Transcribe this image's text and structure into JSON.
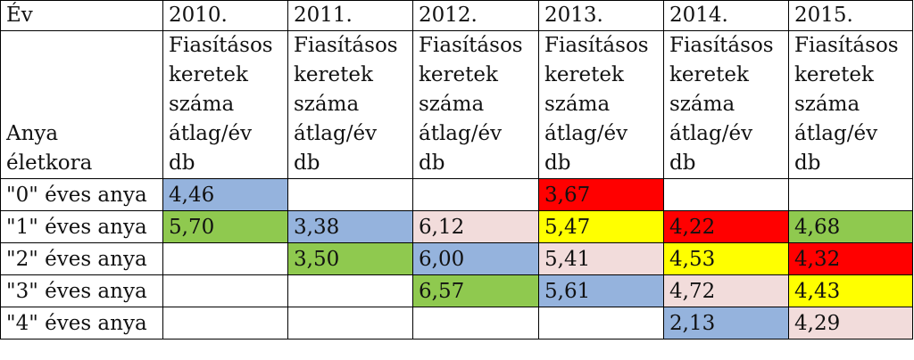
{
  "table": {
    "corner_label": "Év",
    "row_header_label_line1": "Anya",
    "row_header_label_line2": "életkora",
    "years": [
      "2010.",
      "2011.",
      "2012.",
      "2013.",
      "2014.",
      "2015."
    ],
    "column_header_lines": [
      "Fiasításos",
      "keretek",
      "száma",
      "átlag/év",
      "db"
    ],
    "rows": [
      {
        "label": "\"0\" éves anya",
        "cells": [
          {
            "value": "4,46",
            "color": "blue"
          },
          {
            "value": "",
            "color": "none"
          },
          {
            "value": "",
            "color": "none"
          },
          {
            "value": "3,67",
            "color": "red"
          },
          {
            "value": "",
            "color": "none"
          },
          {
            "value": "",
            "color": "none"
          }
        ]
      },
      {
        "label": "\"1\" éves anya",
        "cells": [
          {
            "value": "5,70",
            "color": "green"
          },
          {
            "value": "3,38",
            "color": "blue"
          },
          {
            "value": "6,12",
            "color": "pink"
          },
          {
            "value": "5,47",
            "color": "yellow"
          },
          {
            "value": "4,22",
            "color": "red"
          },
          {
            "value": "4,68",
            "color": "green"
          }
        ]
      },
      {
        "label": "\"2\" éves anya",
        "cells": [
          {
            "value": "",
            "color": "none"
          },
          {
            "value": "3,50",
            "color": "green"
          },
          {
            "value": "6,00",
            "color": "blue"
          },
          {
            "value": "5,41",
            "color": "pink"
          },
          {
            "value": "4,53",
            "color": "yellow"
          },
          {
            "value": "4,32",
            "color": "red"
          }
        ]
      },
      {
        "label": "\"3\" éves anya",
        "cells": [
          {
            "value": "",
            "color": "none"
          },
          {
            "value": "",
            "color": "none"
          },
          {
            "value": "6,57",
            "color": "green"
          },
          {
            "value": "5,61",
            "color": "blue"
          },
          {
            "value": "4,72",
            "color": "pink"
          },
          {
            "value": "4,43",
            "color": "yellow"
          }
        ]
      },
      {
        "label": "\"4\" éves anya",
        "cells": [
          {
            "value": "",
            "color": "none"
          },
          {
            "value": "",
            "color": "none"
          },
          {
            "value": "",
            "color": "none"
          },
          {
            "value": "",
            "color": "none"
          },
          {
            "value": "2,13",
            "color": "blue"
          },
          {
            "value": "4,29",
            "color": "pink"
          }
        ]
      }
    ],
    "colors": {
      "blue": "#95b3dd",
      "green": "#8fc94f",
      "pink": "#f2dcdb",
      "yellow": "#ffff00",
      "red": "#ff0000"
    }
  }
}
